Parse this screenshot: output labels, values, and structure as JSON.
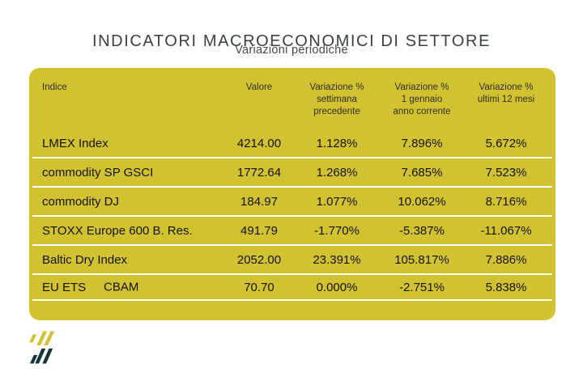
{
  "header": {
    "title": "INDICATORI MACROECONOMICI DI SETTORE",
    "subtitle": "Variazioni periodiche"
  },
  "table": {
    "columns": [
      "Indice",
      "Valore",
      "Variazione %\nsettimana\nprecedente",
      "Variazione %\n1 gennaio\nanno corrente",
      "Variazione %\nultimi 12 mesi"
    ],
    "rows": [
      {
        "indice": "LMEX Index",
        "valore": "4214.00",
        "var_settimana": "1.128%",
        "var_1_gennaio": "7.896%",
        "var_12_mesi": "5.672%"
      },
      {
        "indice": "commodity SP GSCI",
        "valore": "1772.64",
        "var_settimana": "1.268%",
        "var_1_gennaio": "7.685%",
        "var_12_mesi": "7.523%"
      },
      {
        "indice": "commodity DJ",
        "valore": "184.97",
        "var_settimana": "1.077%",
        "var_1_gennaio": "10.062%",
        "var_12_mesi": "8.716%"
      },
      {
        "indice": "STOXX Europe 600 B. Res.",
        "valore": "491.79",
        "var_settimana": "-1.770%",
        "var_1_gennaio": "-5.387%",
        "var_12_mesi": "-11.067%"
      },
      {
        "indice": "Baltic Dry Index",
        "valore": "2052.00",
        "var_settimana": "23.391%",
        "var_1_gennaio": "105.817%",
        "var_12_mesi": "7.886%"
      },
      {
        "indice": "EU ETS",
        "indice_secondary": "CBAM",
        "valore": "70.70",
        "var_settimana": "0.000%",
        "var_1_gennaio": "-2.751%",
        "var_12_mesi": "5.838%"
      }
    ]
  },
  "logo": {
    "name": "double-row-slashes-logo"
  },
  "colors": {
    "panel_yellow": "#d2c232",
    "divider_white": "#ffffff",
    "logo_dark": "#17333e",
    "logo_yellow": "#d2c232",
    "title_gray": "#3b4045",
    "row_text": "#131313",
    "header_text": "#2f2f1c"
  }
}
